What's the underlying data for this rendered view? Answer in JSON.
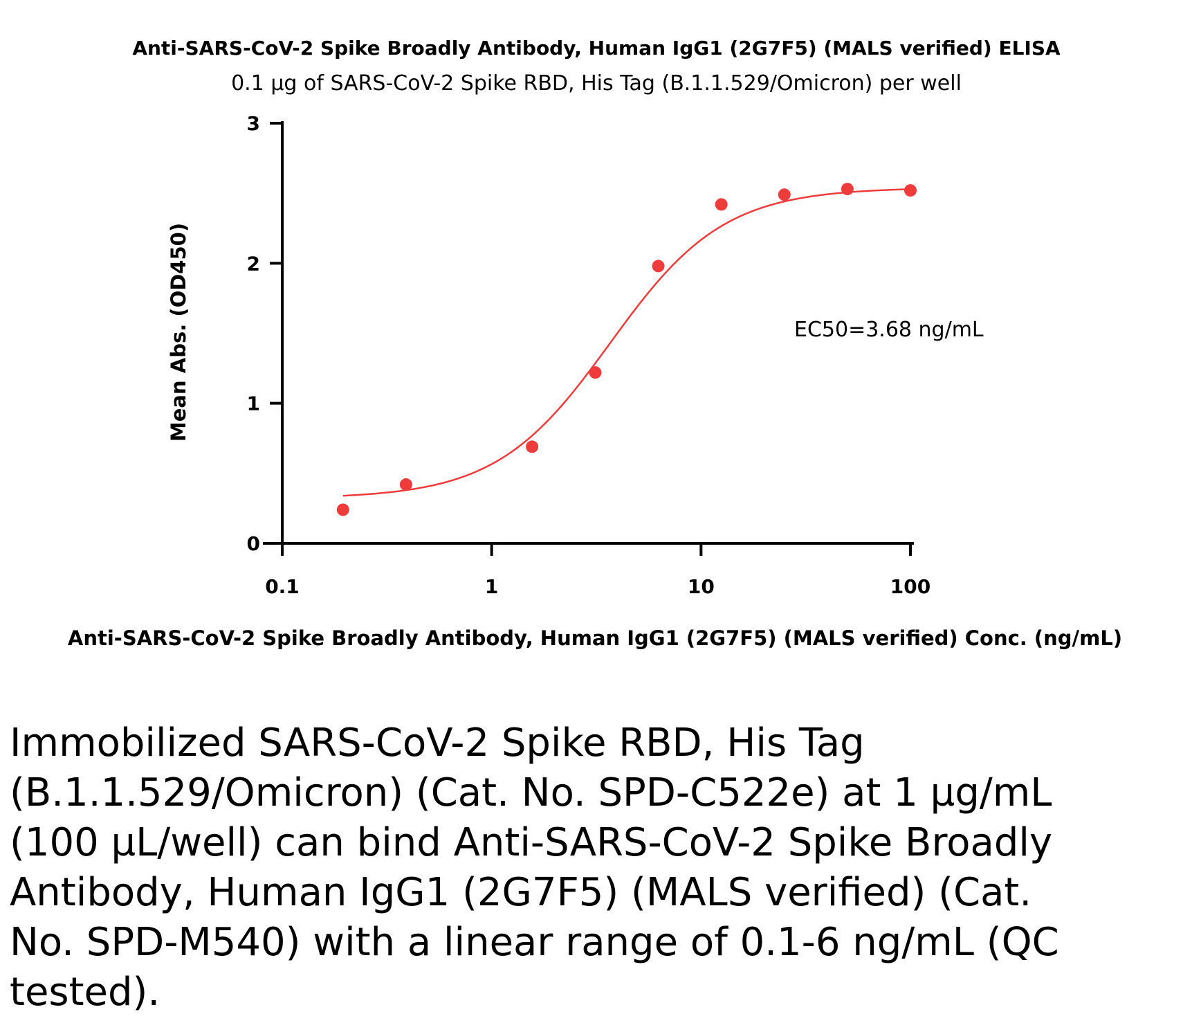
{
  "chart_data": {
    "type": "scatter",
    "title": "Anti-SARS-CoV-2 Spike Broadly Antibody, Human IgG1 (2G7F5) (MALS verified) ELISA",
    "subtitle": "0.1 µg of SARS-CoV-2 Spike RBD, His Tag (B.1.1.529/Omicron) per well",
    "xlabel": "Anti-SARS-CoV-2 Spike Broadly Antibody, Human IgG1 (2G7F5) (MALS verified) Conc. (ng/mL)",
    "ylabel": "Mean Abs. (OD450)",
    "xscale": "log",
    "xlim": [
      0.1,
      100
    ],
    "ylim": [
      0,
      3
    ],
    "x_ticks": [
      0.1,
      1,
      10,
      100
    ],
    "x_tick_labels": [
      "0.1",
      "1",
      "10",
      "100"
    ],
    "y_ticks": [
      0,
      1,
      2,
      3
    ],
    "y_tick_labels": [
      "0",
      "1",
      "2",
      "3"
    ],
    "grid": false,
    "series": [
      {
        "color": "#ee3b3b",
        "x": [
          0.195,
          0.39,
          1.56,
          3.125,
          6.25,
          12.5,
          25,
          50,
          100
        ],
        "y": [
          0.24,
          0.42,
          0.69,
          1.22,
          1.98,
          2.42,
          2.49,
          2.53,
          2.52
        ]
      }
    ],
    "fit": {
      "type": "4PL",
      "bottom": 0.32,
      "top": 2.54,
      "ec50": 3.68,
      "hill": 1.6
    },
    "annotation": "EC50=3.68 ng/mL"
  },
  "caption": "Immobilized SARS-CoV-2 Spike RBD, His Tag (B.1.1.529/Omicron) (Cat. No. SPD-C522e) at 1 µg/mL (100 µL/well) can bind Anti-SARS-CoV-2 Spike Broadly Antibody, Human IgG1 (2G7F5) (MALS verified) (Cat. No. SPD-M540) with a linear range of 0.1-6 ng/mL (QC tested)."
}
